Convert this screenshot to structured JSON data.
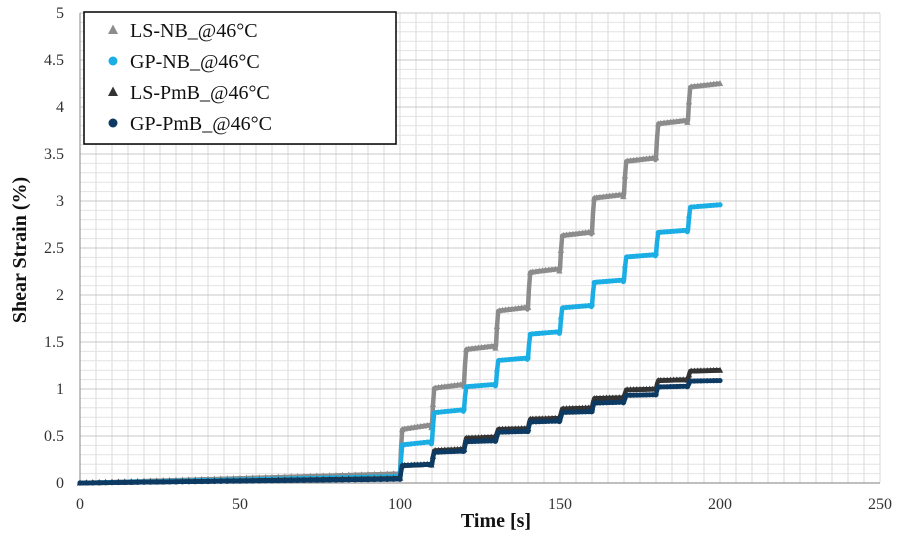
{
  "chart_data": {
    "type": "scatter",
    "title": "",
    "xlabel": "Time [s]",
    "ylabel": "Shear Strain (%)",
    "xlim": [
      0,
      250
    ],
    "ylim": [
      0,
      5
    ],
    "xticks": [
      "0",
      "50",
      "100",
      "150",
      "200",
      "250"
    ],
    "yticks": [
      "0",
      "0.5",
      "1",
      "1.5",
      "2",
      "2.5",
      "3",
      "3.5",
      "4",
      "4.5",
      "5"
    ],
    "grid": true,
    "legend_position": "top-left",
    "series": [
      {
        "name": "LS-NB_@46°C",
        "marker": "triangle",
        "color": "#8c8c8c",
        "steps": [
          {
            "x": 100,
            "y": 0.62
          },
          {
            "x": 110,
            "y": 1.05
          },
          {
            "x": 120,
            "y": 1.46
          },
          {
            "x": 130,
            "y": 1.87
          },
          {
            "x": 140,
            "y": 2.28
          },
          {
            "x": 150,
            "y": 2.67
          },
          {
            "x": 160,
            "y": 3.07
          },
          {
            "x": 170,
            "y": 3.46
          },
          {
            "x": 180,
            "y": 3.86
          },
          {
            "x": 190,
            "y": 4.25
          }
        ],
        "pre_step_end": 0.1
      },
      {
        "name": "GP-NB_@46°C",
        "marker": "circle",
        "color": "#1aaee5",
        "steps": [
          {
            "x": 100,
            "y": 0.44
          },
          {
            "x": 110,
            "y": 0.78
          },
          {
            "x": 120,
            "y": 1.05
          },
          {
            "x": 130,
            "y": 1.33
          },
          {
            "x": 140,
            "y": 1.61
          },
          {
            "x": 150,
            "y": 1.89
          },
          {
            "x": 160,
            "y": 2.16
          },
          {
            "x": 170,
            "y": 2.43
          },
          {
            "x": 180,
            "y": 2.69
          },
          {
            "x": 190,
            "y": 2.96
          }
        ],
        "pre_step_end": 0.07
      },
      {
        "name": "LS-PmB_@46°C",
        "marker": "triangle",
        "color": "#333333",
        "steps": [
          {
            "x": 100,
            "y": 0.2
          },
          {
            "x": 110,
            "y": 0.36
          },
          {
            "x": 120,
            "y": 0.49
          },
          {
            "x": 130,
            "y": 0.58
          },
          {
            "x": 140,
            "y": 0.69
          },
          {
            "x": 150,
            "y": 0.8
          },
          {
            "x": 160,
            "y": 0.91
          },
          {
            "x": 170,
            "y": 1.0
          },
          {
            "x": 180,
            "y": 1.1
          },
          {
            "x": 190,
            "y": 1.2
          }
        ],
        "pre_step_end": 0.05
      },
      {
        "name": "GP-PmB_@46°C",
        "marker": "circle",
        "color": "#0d3a63",
        "steps": [
          {
            "x": 100,
            "y": 0.2
          },
          {
            "x": 110,
            "y": 0.34
          },
          {
            "x": 120,
            "y": 0.45
          },
          {
            "x": 130,
            "y": 0.55
          },
          {
            "x": 140,
            "y": 0.66
          },
          {
            "x": 150,
            "y": 0.76
          },
          {
            "x": 160,
            "y": 0.86
          },
          {
            "x": 170,
            "y": 0.94
          },
          {
            "x": 180,
            "y": 1.03
          },
          {
            "x": 190,
            "y": 1.09
          }
        ],
        "pre_step_end": 0.04
      }
    ]
  }
}
